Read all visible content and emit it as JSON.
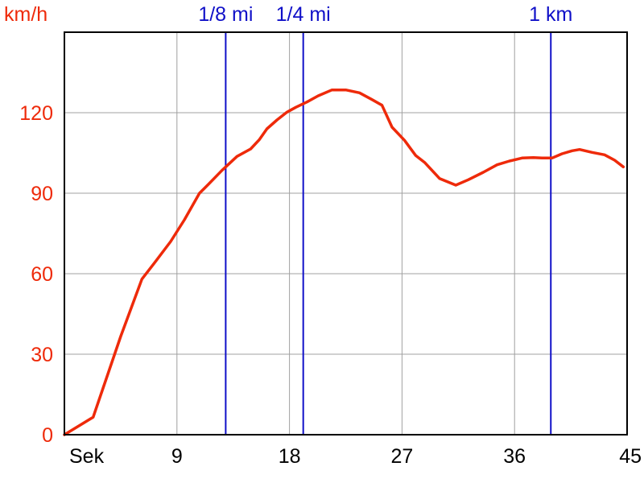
{
  "chart_data": {
    "type": "line",
    "ylabel": "km/h",
    "x_start_label": "Sek",
    "xlim": [
      0,
      45
    ],
    "ylim": [
      0,
      150
    ],
    "x_ticks": [
      9,
      18,
      27,
      36,
      45
    ],
    "y_ticks": [
      0,
      30,
      60,
      90,
      120
    ],
    "grid": true,
    "x_tick_labels": [
      "9",
      "18",
      "27",
      "36",
      "45"
    ],
    "y_tick_labels": [
      "0",
      "30",
      "60",
      "90",
      "120"
    ],
    "series": [
      {
        "color": "#ee2a0a",
        "x": [
          0,
          2.3,
          4.5,
          6.2,
          7.2,
          8.5,
          9.6,
          10.8,
          11.5,
          12.6,
          13.8,
          14.9,
          15.6,
          16.2,
          17.0,
          17.8,
          18.5,
          19.4,
          20.3,
          21.4,
          22.5,
          23.6,
          24.6,
          25.4,
          26.2,
          27.2,
          28.1,
          28.8,
          30.0,
          31.3,
          32.3,
          33.5,
          34.6,
          35.6,
          36.6,
          37.5,
          38.2,
          39.0,
          39.8,
          40.6,
          41.2,
          42.2,
          43.2,
          44.0,
          44.7
        ],
        "y": [
          0,
          6.5,
          36.6,
          58,
          64,
          72,
          80.1,
          90,
          93.2,
          98.5,
          103.7,
          106.5,
          110,
          114,
          117.3,
          120.2,
          122,
          124,
          126.3,
          128.5,
          128.5,
          127.4,
          124.9,
          122.8,
          114.6,
          109.7,
          104,
          101.5,
          95.5,
          93,
          95,
          97.8,
          100.6,
          102,
          103.1,
          103.3,
          103.1,
          103.1,
          104.7,
          105.8,
          106.3,
          105.2,
          104.3,
          102.3,
          99.8
        ]
      }
    ],
    "markers": [
      {
        "label": "1/8 mi",
        "x": 12.9,
        "color": "#1010c8"
      },
      {
        "label": "1/4 mi",
        "x": 19.1,
        "color": "#1010c8"
      },
      {
        "label": "1 km",
        "x": 38.9,
        "color": "#1010c8"
      }
    ],
    "colors": {
      "speed": "#ee2a0a",
      "marker": "#1010c8",
      "x_axis_text": "#000000",
      "grid": "#a0a0a0",
      "frame": "#000000"
    }
  }
}
